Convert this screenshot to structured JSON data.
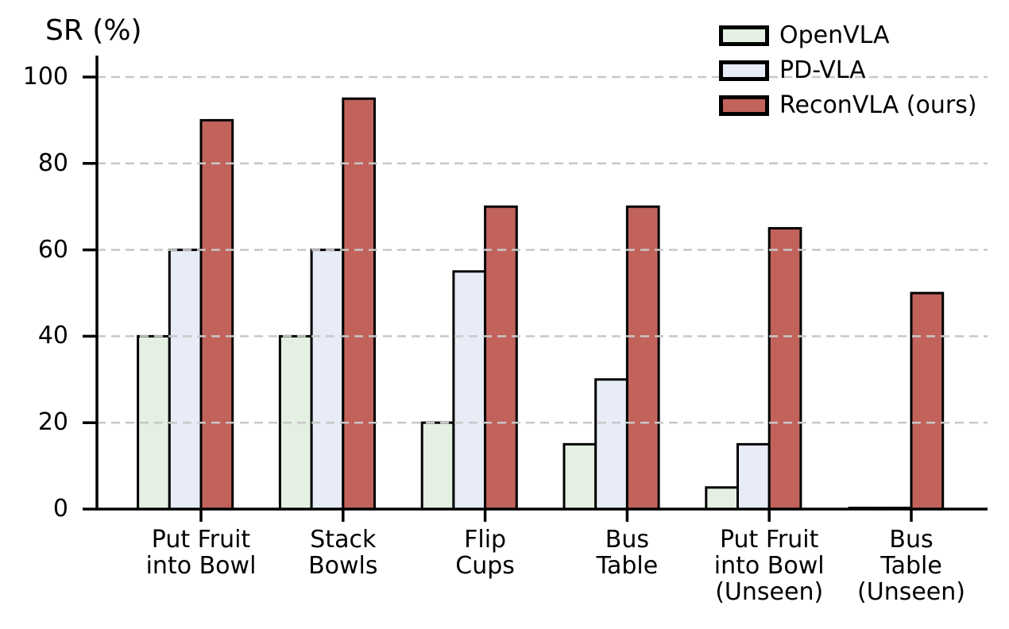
{
  "chart_data": {
    "type": "bar",
    "title": "SR (%)",
    "ylabel": "SR (%)",
    "xlabel": "",
    "categories": [
      "Put Fruit\ninto Bowl",
      "Stack\nBowls",
      "Flip\nCups",
      "Bus\nTable",
      "Put Fruit\ninto Bowl\n(Unseen)",
      "Bus\nTable\n(Unseen)"
    ],
    "series": [
      {
        "name": "OpenVLA",
        "color": "#e4f1e2",
        "values": [
          40,
          40,
          20,
          15,
          5,
          0
        ]
      },
      {
        "name": "PD-VLA",
        "color": "#e8ecf7",
        "values": [
          60,
          60,
          55,
          30,
          15,
          0
        ]
      },
      {
        "name": "ReconVLA (ours)",
        "color": "#c1625b",
        "values": [
          90,
          95,
          70,
          70,
          65,
          50
        ]
      }
    ],
    "yticks": [
      0,
      20,
      40,
      60,
      80,
      100
    ],
    "ylim": [
      0,
      100
    ],
    "grid": "horizontal dashed",
    "grid_color": "#c8c8c8",
    "bar_edge_color": "#000000",
    "axis_color": "#000000",
    "legend_position": "upper right"
  }
}
